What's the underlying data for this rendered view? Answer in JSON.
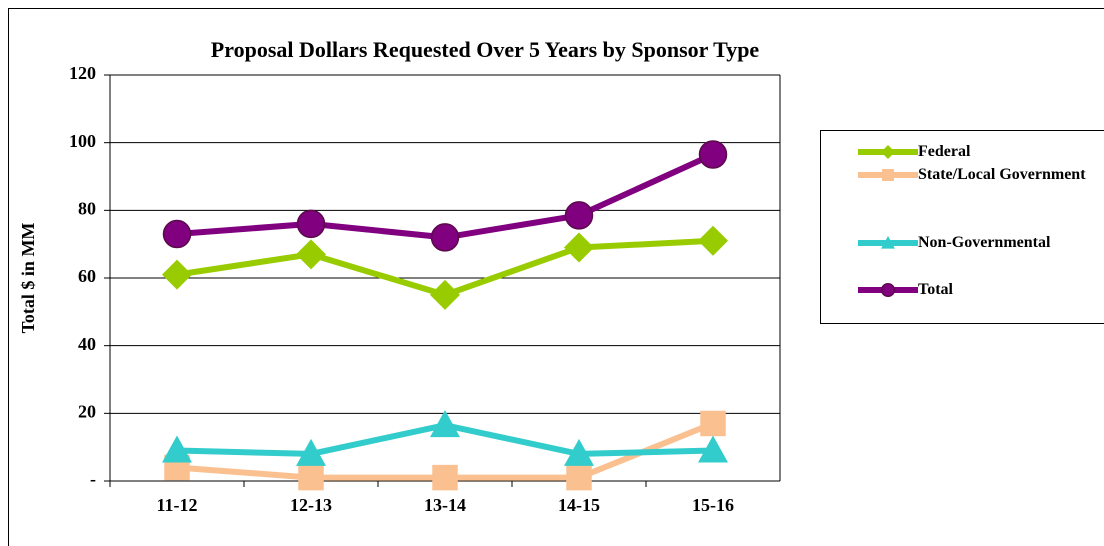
{
  "chart_data": {
    "type": "line",
    "title": "Proposal Dollars Requested Over 5 Years by Sponsor Type",
    "y_label": "Total $ in MM",
    "categories": [
      "11-12",
      "12-13",
      "13-14",
      "14-15",
      "15-16"
    ],
    "series": [
      {
        "name": "Federal",
        "color": "#99cc00",
        "marker": "diamond",
        "values": [
          61,
          67,
          55,
          69,
          71
        ]
      },
      {
        "name": "State/Local Government",
        "color": "#fac090",
        "marker": "square",
        "values": [
          4,
          1,
          1,
          1,
          17
        ]
      },
      {
        "name": "Non-Governmental",
        "color": "#33cccc",
        "marker": "triangle",
        "values": [
          9,
          8,
          16.5,
          8,
          9
        ]
      },
      {
        "name": "Total",
        "color": "#800080",
        "marker": "circle",
        "values": [
          73,
          76,
          72,
          78.5,
          96.5
        ]
      }
    ],
    "ylim": [
      0,
      120
    ],
    "yticks": [
      {
        "value": 0,
        "label": "-"
      },
      20,
      40,
      60,
      80,
      100,
      120
    ],
    "grid": true,
    "legend": "right"
  }
}
